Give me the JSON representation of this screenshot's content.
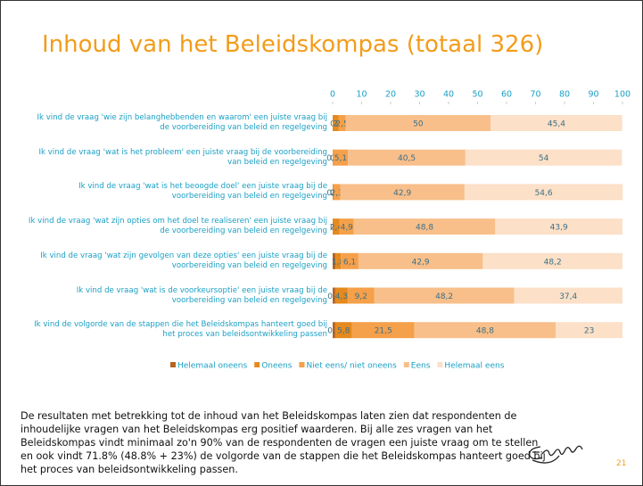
{
  "chart_data": {
    "type": "stacked_bar_horizontal",
    "title": "Inhoud van het Beleidskompas (totaal 326)",
    "categories": [
      "Ik vind de vraag 'wie zijn belanghebbenden en waarom' een juiste vraag bij de voorbereiding van beleid en regelgeving",
      "Ik vind de vraag 'wat is het probleem' een juiste vraag bij de voorbereiding van beleid en regelgeving",
      "Ik vind de vraag 'wat is het beoogde doel' een juiste vraag bij de voorbereiding van beleid en regelgeving",
      "Ik vind de vraag 'wat zijn opties om het doel te realiseren' een juiste vraag bij de voorbereiding van beleid en regelgeving",
      "Ik vind de vraag 'wat zijn gevolgen van deze opties' een juiste vraag bij de voorbereiding van beleid en regelgeving",
      "Ik vind de vraag 'wat is de voorkeursoptie' een juiste vraag bij de voorbereiding van beleid en regelgeving",
      "Ik vind de volgorde van de stappen die het Beleidskompas hanteert goed bij het proces van beleidsontwikkeling passen"
    ],
    "series": [
      {
        "name": "Helemaal oneens",
        "color": "#b8641e",
        "values": [
          0,
          0,
          0,
          0,
          1,
          0.9,
          0.9
        ],
        "value_labels": [
          "0",
          "0",
          "0",
          "0",
          "1",
          "0,9",
          "0,9"
        ]
      },
      {
        "name": "Oneens",
        "color": "#e48a1e",
        "values": [
          2,
          0.2,
          0.3,
          2.4,
          1.8,
          4.3,
          5.8
        ],
        "value_labels": [
          "2",
          "0,2",
          "0,3",
          "2,4",
          "1,8",
          "4,3",
          "5,8"
        ]
      },
      {
        "name": "Niet eens/ niet oneens",
        "color": "#f5a04a",
        "values": [
          2.5,
          5.1,
          2.3,
          4.9,
          6.1,
          9.2,
          21.5
        ],
        "value_labels": [
          "2,5",
          "5,1",
          "2,3",
          "4,9",
          "6,1",
          "9,2",
          "21,5"
        ]
      },
      {
        "name": "Eens",
        "color": "#f8bf8a",
        "values": [
          50,
          40.5,
          42.9,
          48.8,
          42.9,
          48.2,
          48.8
        ],
        "value_labels": [
          "50",
          "40,5",
          "42,9",
          "48,8",
          "42,9",
          "48,2",
          "48,8"
        ]
      },
      {
        "name": "Helemaal eens",
        "color": "#fce0c7",
        "values": [
          45.4,
          54,
          54.6,
          43.9,
          48.2,
          37.4,
          23
        ],
        "value_labels": [
          "45,4",
          "54",
          "54,6",
          "43,9",
          "48,2",
          "37,4",
          "23"
        ]
      }
    ],
    "xlim": [
      0,
      100
    ],
    "xticks": [
      0,
      10,
      20,
      30,
      40,
      50,
      60,
      70,
      80,
      90,
      100
    ]
  },
  "body_text": [
    "De resultaten met betrekking tot de inhoud van het Beleidskompas laten zien dat respondenten de",
    "inhoudelijke vragen van het Beleidskompas erg positief waarderen. Bij alle zes vragen van het",
    "Beleidskompas vindt minimaal zo'n 90% van de respondenten de vragen een juiste vraag om te stellen",
    "en ook vindt 71.8% (48.8% + 23%) de volgorde van de stappen die het Beleidskompas hanteert goed bij",
    "het proces van beleidsontwikkeling passen."
  ],
  "page_number": "21"
}
